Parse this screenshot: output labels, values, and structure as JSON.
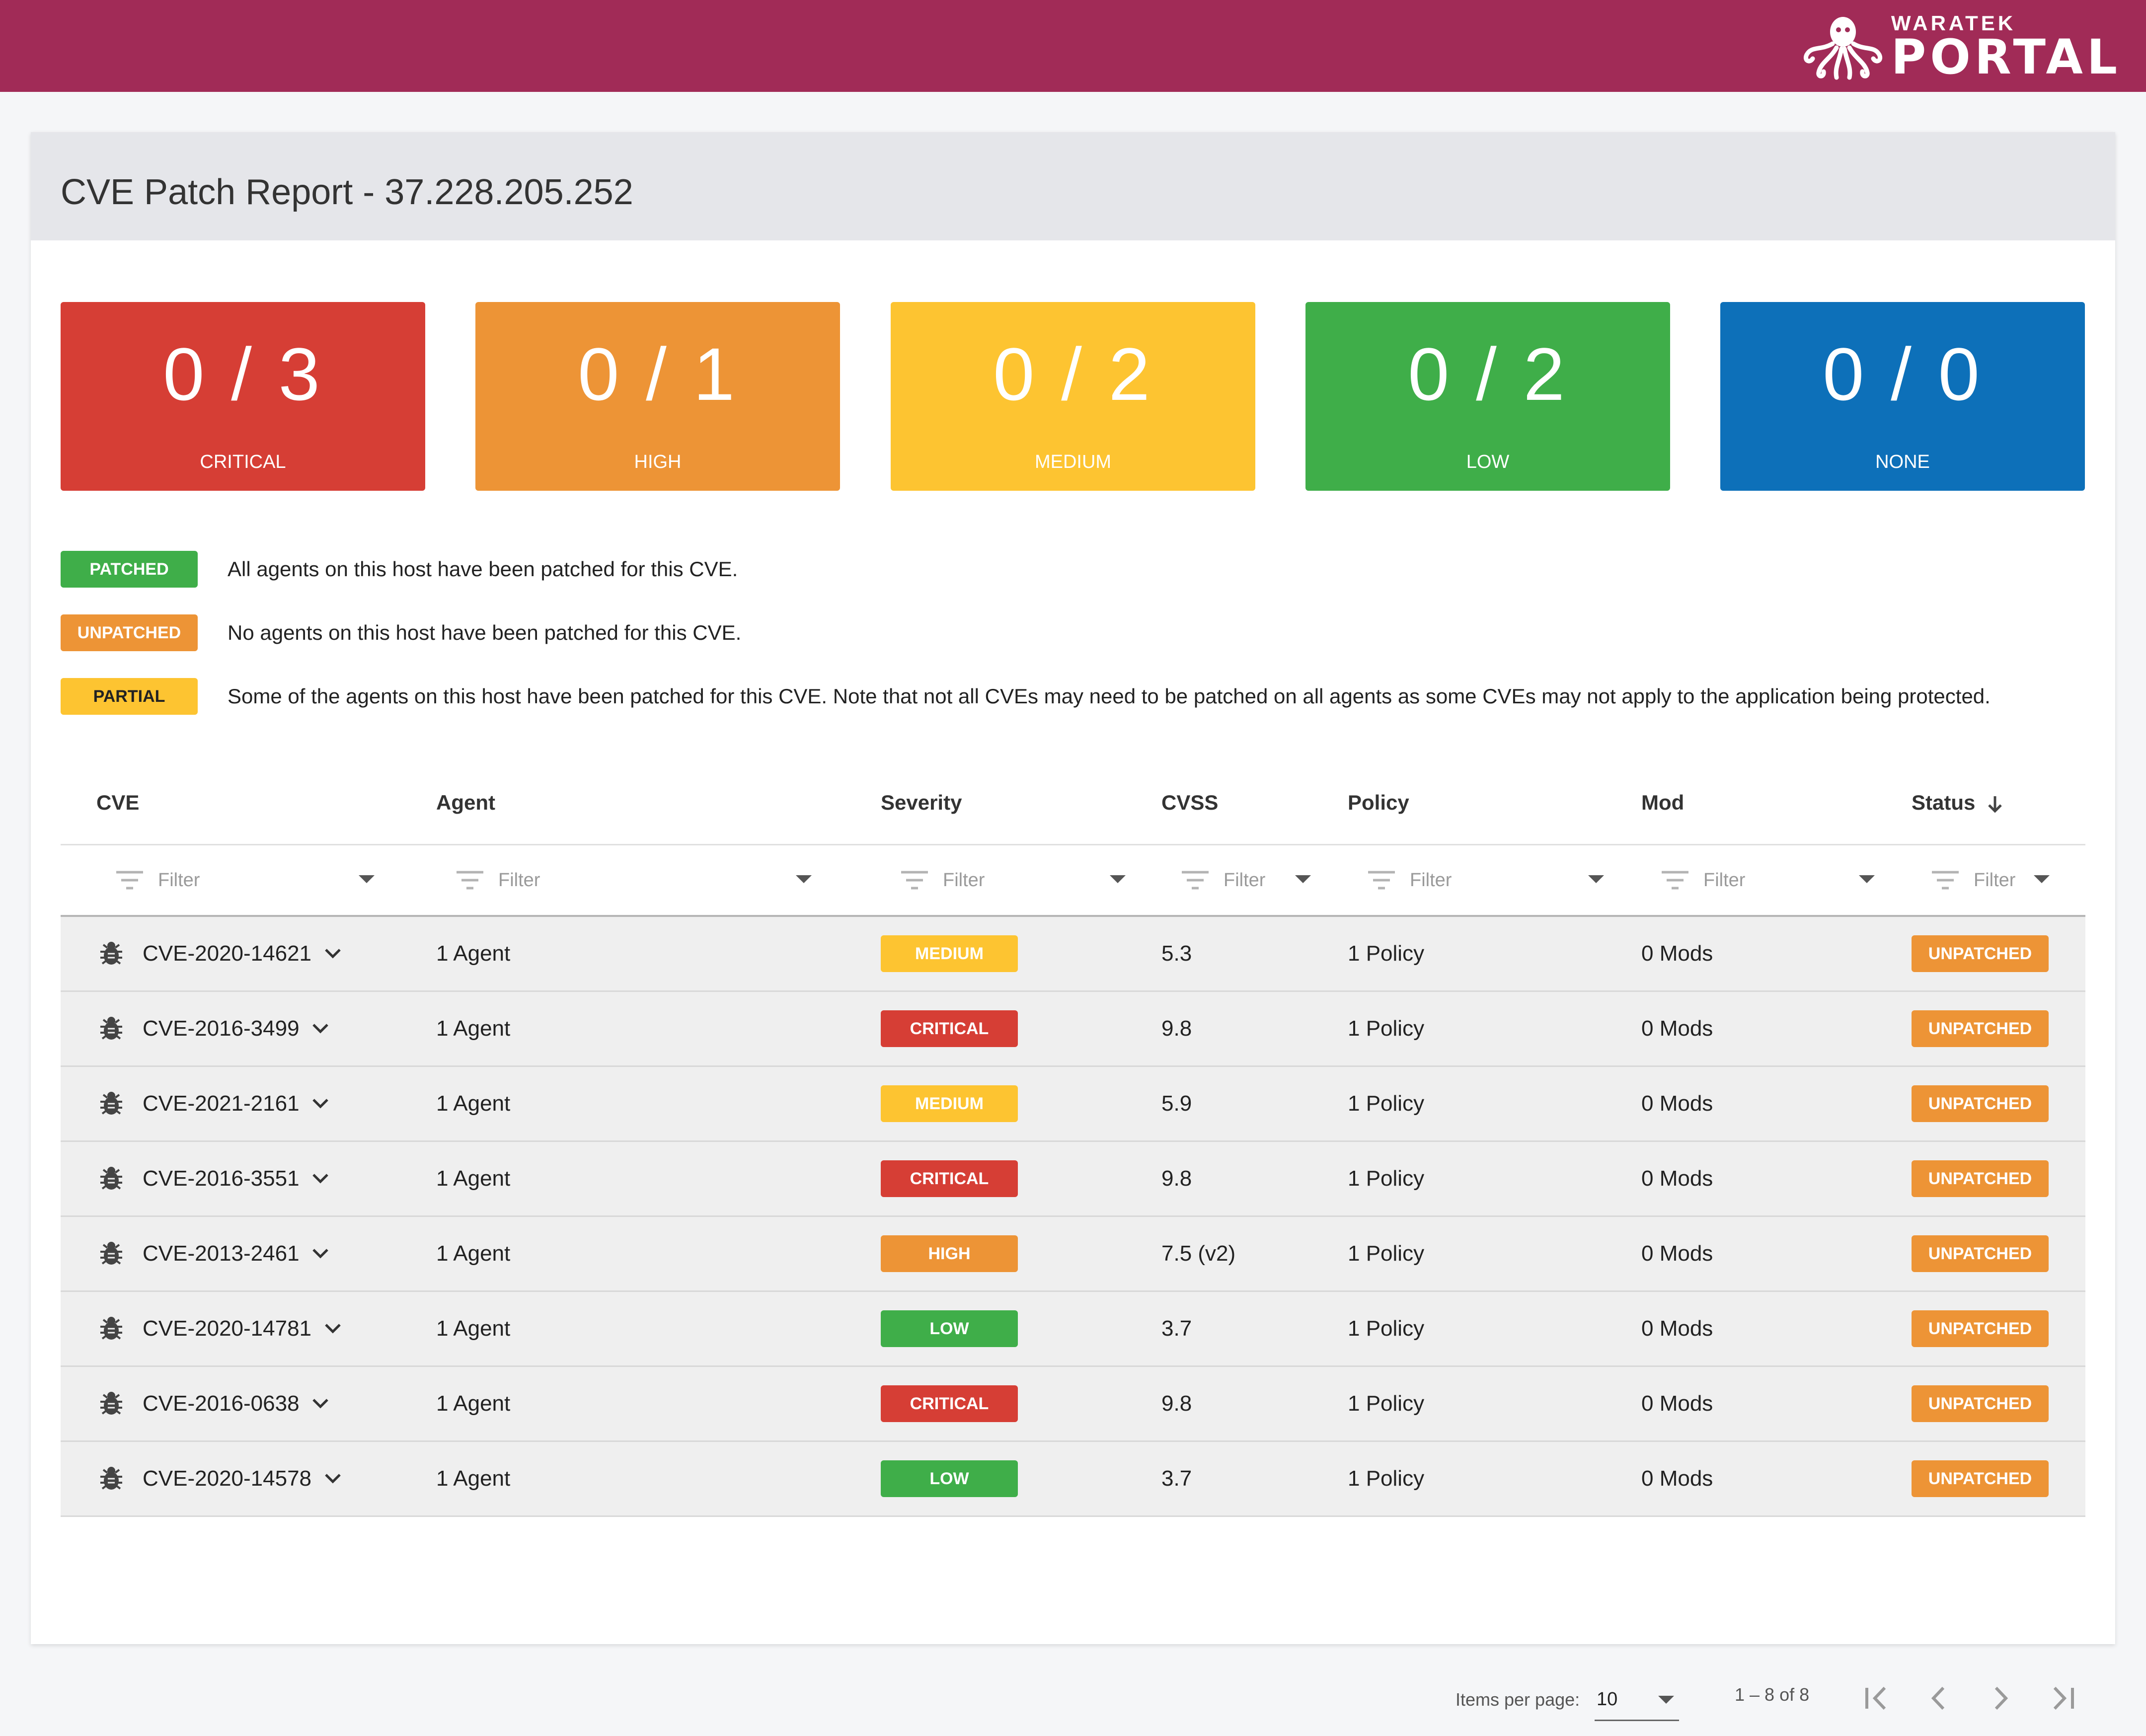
{
  "brand": {
    "small": "WARATEK",
    "big": "PORTAL"
  },
  "page_title": "CVE Patch Report - 37.228.205.252",
  "summary": [
    {
      "count": "0 / 3",
      "label": "CRITICAL",
      "color": "#d63e35"
    },
    {
      "count": "0 / 1",
      "label": "HIGH",
      "color": "#ed9436"
    },
    {
      "count": "0 / 2",
      "label": "MEDIUM",
      "color": "#fdc431"
    },
    {
      "count": "0 / 2",
      "label": "LOW",
      "color": "#3fae49"
    },
    {
      "count": "0 / 0",
      "label": "NONE",
      "color": "#0d70b9"
    }
  ],
  "legend": [
    {
      "badge": "PATCHED",
      "text": "All agents on this host have been patched for this CVE.",
      "color": "#3fae49",
      "text_color": "#ffffff"
    },
    {
      "badge": "UNPATCHED",
      "text": "No agents on this host have been patched for this CVE.",
      "color": "#ed9436",
      "text_color": "#ffffff"
    },
    {
      "badge": "PARTIAL",
      "text": "Some of the agents on this host have been patched for this CVE. Note that not all CVEs may need to be patched on all agents as some CVEs may not apply to the application being protected.",
      "color": "#fdc431",
      "text_color": "#222222"
    }
  ],
  "table": {
    "columns": [
      "CVE",
      "Agent",
      "Severity",
      "CVSS",
      "Policy",
      "Mod",
      "Status"
    ],
    "sort_icon": "arrow-down-icon",
    "filter_placeholder": "Filter",
    "rows": [
      {
        "cve": "CVE-2020-14621",
        "agent": "1 Agent",
        "severity": "MEDIUM",
        "cvss": "5.3",
        "policy": "1 Policy",
        "mod": "0 Mods",
        "status": "UNPATCHED"
      },
      {
        "cve": "CVE-2016-3499",
        "agent": "1 Agent",
        "severity": "CRITICAL",
        "cvss": "9.8",
        "policy": "1 Policy",
        "mod": "0 Mods",
        "status": "UNPATCHED"
      },
      {
        "cve": "CVE-2021-2161",
        "agent": "1 Agent",
        "severity": "MEDIUM",
        "cvss": "5.9",
        "policy": "1 Policy",
        "mod": "0 Mods",
        "status": "UNPATCHED"
      },
      {
        "cve": "CVE-2016-3551",
        "agent": "1 Agent",
        "severity": "CRITICAL",
        "cvss": "9.8",
        "policy": "1 Policy",
        "mod": "0 Mods",
        "status": "UNPATCHED"
      },
      {
        "cve": "CVE-2013-2461",
        "agent": "1 Agent",
        "severity": "HIGH",
        "cvss": "7.5 (v2)",
        "policy": "1 Policy",
        "mod": "0 Mods",
        "status": "UNPATCHED"
      },
      {
        "cve": "CVE-2020-14781",
        "agent": "1 Agent",
        "severity": "LOW",
        "cvss": "3.7",
        "policy": "1 Policy",
        "mod": "0 Mods",
        "status": "UNPATCHED"
      },
      {
        "cve": "CVE-2016-0638",
        "agent": "1 Agent",
        "severity": "CRITICAL",
        "cvss": "9.8",
        "policy": "1 Policy",
        "mod": "0 Mods",
        "status": "UNPATCHED"
      },
      {
        "cve": "CVE-2020-14578",
        "agent": "1 Agent",
        "severity": "LOW",
        "cvss": "3.7",
        "policy": "1 Policy",
        "mod": "0 Mods",
        "status": "UNPATCHED"
      }
    ]
  },
  "severity_colors": {
    "CRITICAL": {
      "bg": "#d63e35",
      "fg": "#ffffff"
    },
    "HIGH": {
      "bg": "#ed9436",
      "fg": "#ffffff"
    },
    "MEDIUM": {
      "bg": "#fdc431",
      "fg": "#ffffff"
    },
    "LOW": {
      "bg": "#3fae49",
      "fg": "#ffffff"
    },
    "UNPATCHED": {
      "bg": "#ed9436",
      "fg": "#ffffff"
    }
  },
  "paginator": {
    "items_per_page_label": "Items per page:",
    "items_per_page_value": "10",
    "range_label": "1 – 8 of 8"
  }
}
